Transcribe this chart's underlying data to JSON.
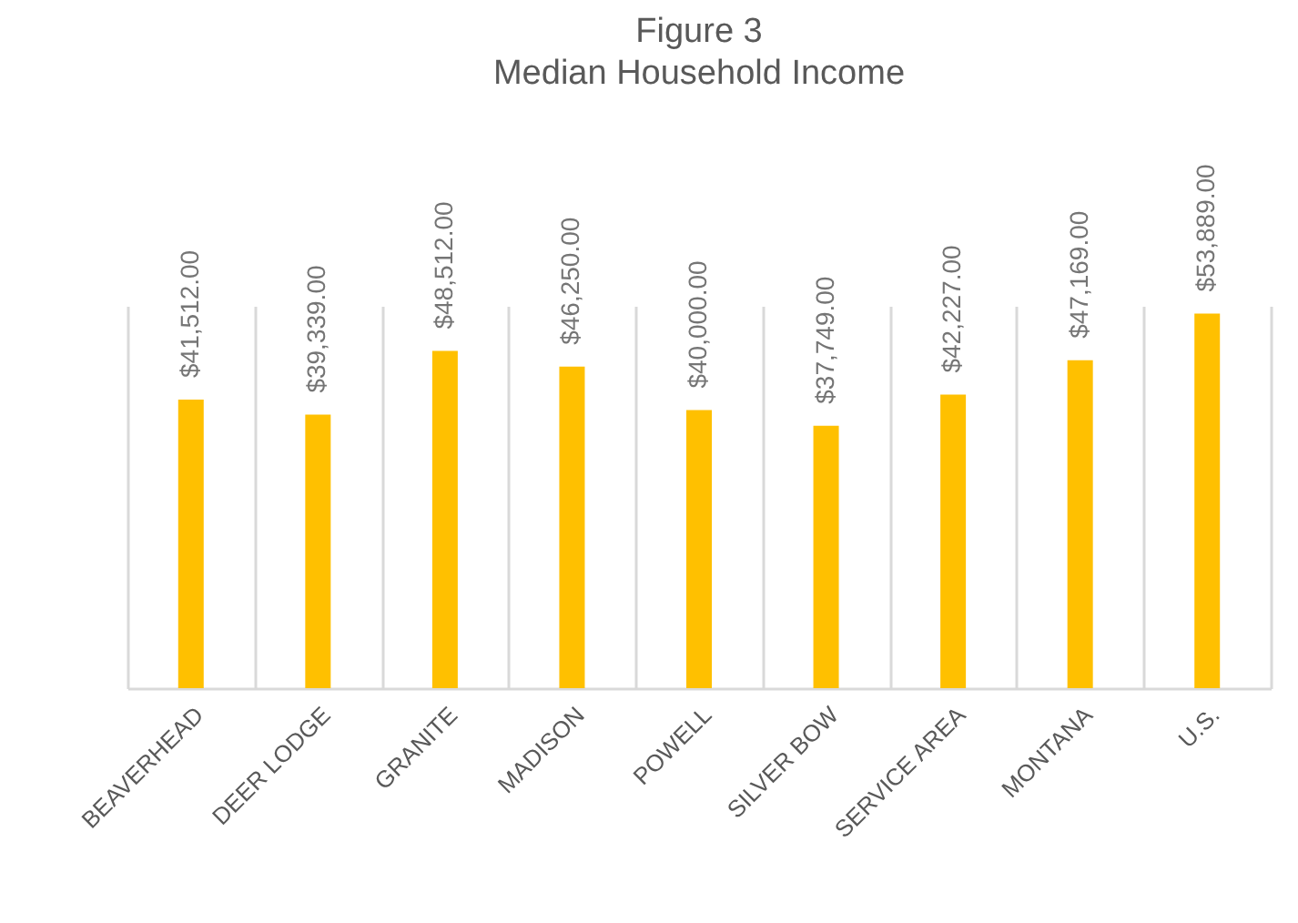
{
  "chart_data": {
    "type": "bar",
    "title": "Figure 3",
    "subtitle": "Median Household Income",
    "categories": [
      "BEAVERHEAD",
      "DEER LODGE",
      "GRANITE",
      "MADISON",
      "POWELL",
      "SILVER BOW",
      "SERVICE AREA",
      "MONTANA",
      "U.S."
    ],
    "values": [
      41512,
      39339,
      48512,
      46250,
      40000,
      37749,
      42227,
      47169,
      53889
    ],
    "value_labels": [
      "$41,512.00",
      "$39,339.00",
      "$48,512.00",
      "$46,250.00",
      "$40,000.00",
      "$37,749.00",
      "$42,227.00",
      "$47,169.00",
      "$53,889.00"
    ],
    "color": "#ffc000",
    "grid": "x"
  }
}
